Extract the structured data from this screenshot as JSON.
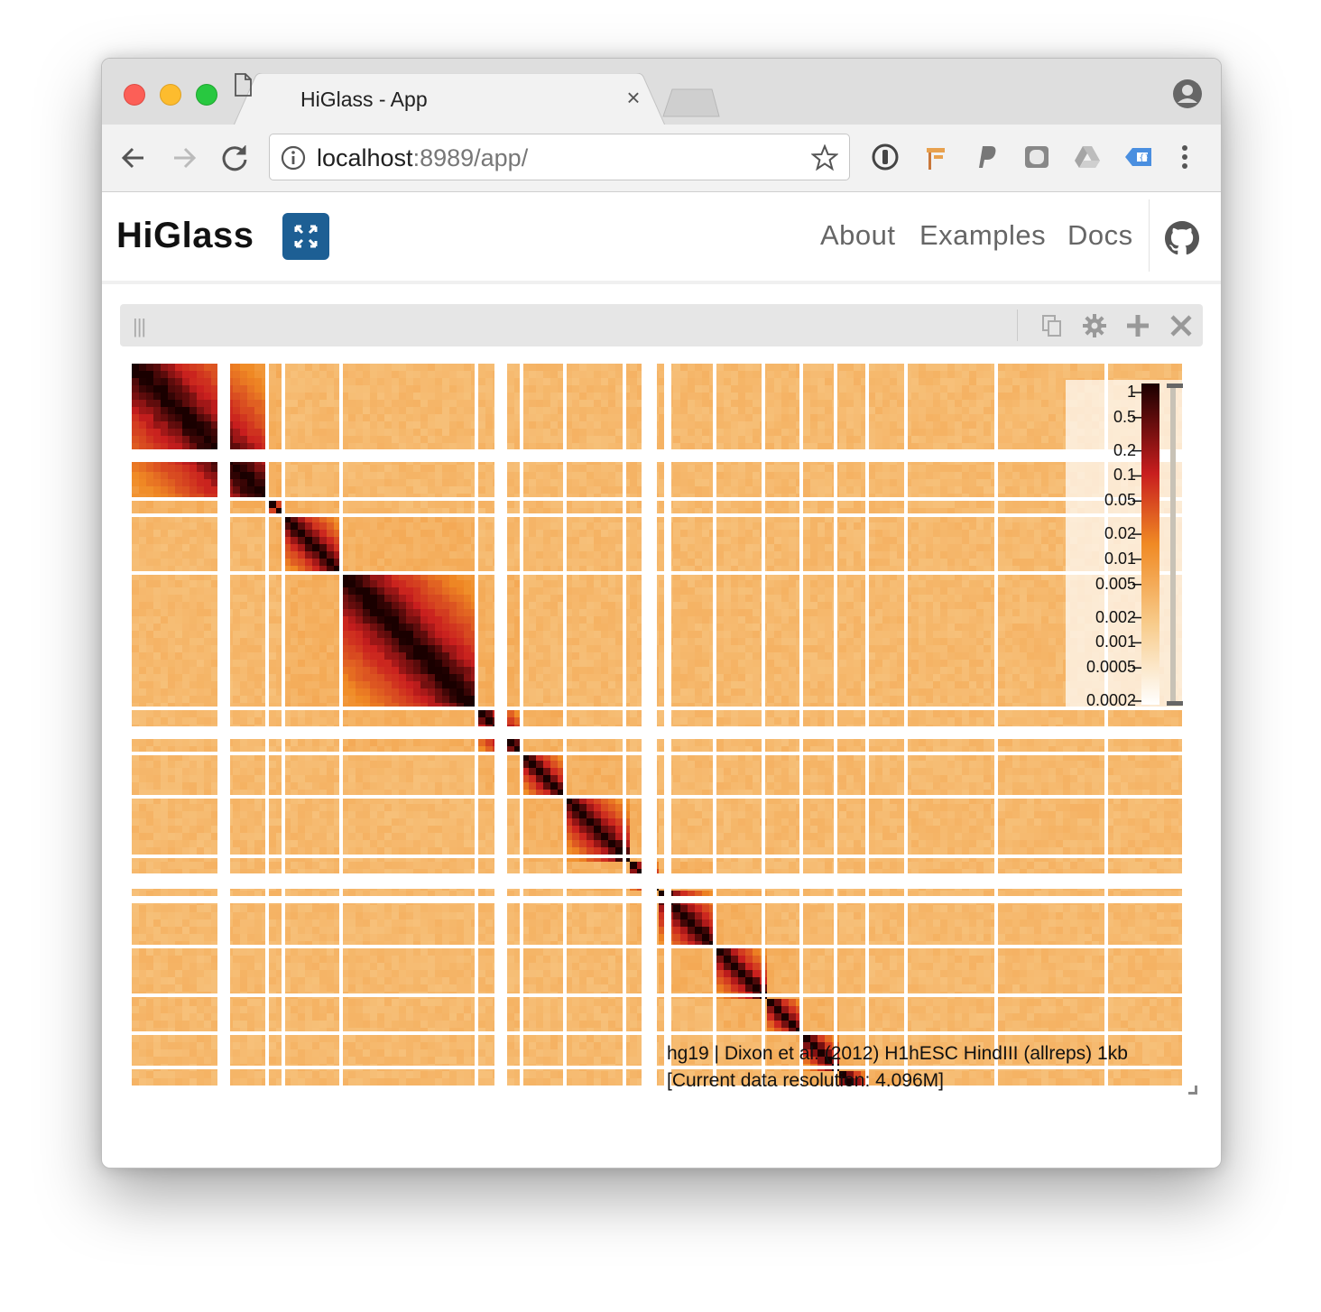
{
  "browser": {
    "tab_title": "HiGlass - App",
    "url_host": "localhost",
    "url_rest": ":8989/app/",
    "icons": [
      "document-icon",
      "close-icon",
      "back-icon",
      "forward-icon",
      "reload-icon",
      "info-icon",
      "star-icon",
      "extension-icons",
      "menu-icon",
      "profile-icon"
    ]
  },
  "app": {
    "brand": "HiGlass",
    "nav": {
      "about": "About",
      "examples": "Examples",
      "docs": "Docs"
    },
    "icons": [
      "fullscreen-icon",
      "github-icon"
    ]
  },
  "view_header": {
    "drag_handle": "|||",
    "icons": [
      "copy-icon",
      "gear-icon",
      "plus-icon",
      "close-icon"
    ]
  },
  "colorbar": {
    "labels": [
      "1",
      "0.5",
      "0.2",
      "0.1",
      "0.05",
      "0.02",
      "0.01",
      "0.005",
      "0.002",
      "0.001",
      "0.0005",
      "0.0002"
    ]
  },
  "track": {
    "label_line1": "hg19 | Dixon et al. (2012) H1hESC HindIII (allreps) 1kb",
    "label_line2": "[Current data resolution: 4.096M]"
  },
  "colors": {
    "heat_low": "#f8cc8c",
    "heat_mid": "#f08a24",
    "heat_high": "#c81e1e",
    "heat_max": "#1a0000",
    "brand_button": "#1d5f94"
  }
}
